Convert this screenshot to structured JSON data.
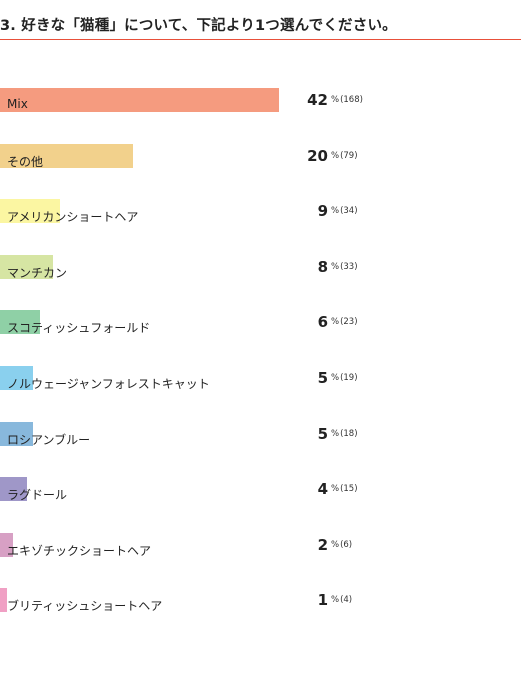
{
  "title": "3. 好きな「猫種」について、下記より1つ選んでください。",
  "colors": {
    "rule": "#e8503a"
  },
  "chart_data": {
    "type": "bar",
    "orientation": "horizontal",
    "title": "3. 好きな「猫種」について、下記より1つ選んでください。",
    "xlim": [
      0,
      42
    ],
    "categories": [
      "Mix",
      "その他",
      "アメリカンショートヘア",
      "マンチカン",
      "スコティッシュフォールド",
      "ノルウェージャンフォレストキャット",
      "ロシアンブルー",
      "ラグドール",
      "エキゾチックショートヘア",
      "ブリティッシュショートヘア"
    ],
    "values": [
      42,
      20,
      9,
      8,
      6,
      5,
      5,
      4,
      2,
      1
    ],
    "counts": [
      "(168)",
      "(79)",
      "(34)",
      "(33)",
      "(23)",
      "(19)",
      "(18)",
      "(15)",
      "(6)",
      "(4)"
    ],
    "unit": "%",
    "colors": [
      "#f59b7f",
      "#f2d18c",
      "#fbf6a2",
      "#d6e5a3",
      "#8fd0a6",
      "#8ad0ee",
      "#88b8dc",
      "#9f97c8",
      "#d7a0c4",
      "#f0a0c4"
    ]
  }
}
